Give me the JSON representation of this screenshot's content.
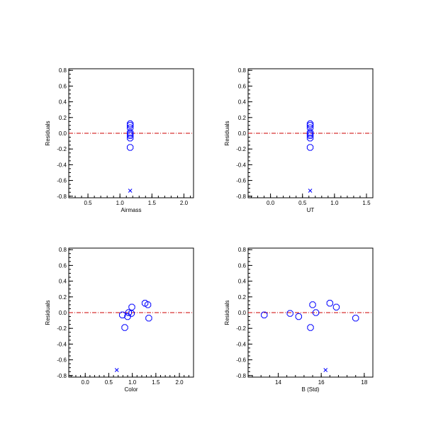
{
  "colors": {
    "point": "#0000ff",
    "excluded": "#0000ff",
    "zero_line": "#cc0000",
    "axes": "#000000"
  },
  "chart_data": [
    {
      "type": "scatter",
      "xlabel": "Airmass",
      "ylabel": "Residuals",
      "xlim": [
        0.2,
        2.15
      ],
      "ylim": [
        -0.82,
        0.82
      ],
      "xticks": [
        "0.5",
        "1.0",
        "1.5",
        "2.0"
      ],
      "xtick_values": [
        0.5,
        1.0,
        1.5,
        2.0
      ],
      "yticks": [
        "0.8",
        "0.6",
        "0.4",
        "0.2",
        "0.0",
        "-0.2",
        "-0.4",
        "-0.6",
        "-0.8"
      ],
      "ytick_values": [
        0.8,
        0.6,
        0.4,
        0.2,
        0.0,
        -0.2,
        -0.4,
        -0.6,
        -0.8
      ],
      "zero_line": 0.0,
      "points": [
        {
          "x": 1.16,
          "y": 0.12
        },
        {
          "x": 1.16,
          "y": 0.1
        },
        {
          "x": 1.16,
          "y": 0.07
        },
        {
          "x": 1.16,
          "y": 0.01
        },
        {
          "x": 1.16,
          "y": -0.01
        },
        {
          "x": 1.16,
          "y": -0.03
        },
        {
          "x": 1.16,
          "y": -0.06
        },
        {
          "x": 1.16,
          "y": -0.18
        }
      ],
      "excluded_points": [
        {
          "x": 1.16,
          "y": -0.73
        }
      ]
    },
    {
      "type": "scatter",
      "xlabel": "UT",
      "ylabel": "Residuals",
      "xlim": [
        -0.35,
        1.6
      ],
      "ylim": [
        -0.82,
        0.82
      ],
      "xticks": [
        "0.0",
        "0.5",
        "1.0",
        "1.5"
      ],
      "xtick_values": [
        0.0,
        0.5,
        1.0,
        1.5
      ],
      "yticks": [
        "0.8",
        "0.6",
        "0.4",
        "0.2",
        "0.0",
        "-0.2",
        "-0.4",
        "-0.6",
        "-0.8"
      ],
      "ytick_values": [
        0.8,
        0.6,
        0.4,
        0.2,
        0.0,
        -0.2,
        -0.4,
        -0.6,
        -0.8
      ],
      "zero_line": 0.0,
      "points": [
        {
          "x": 0.62,
          "y": 0.12
        },
        {
          "x": 0.62,
          "y": 0.1
        },
        {
          "x": 0.62,
          "y": 0.07
        },
        {
          "x": 0.62,
          "y": 0.01
        },
        {
          "x": 0.62,
          "y": -0.01
        },
        {
          "x": 0.62,
          "y": -0.03
        },
        {
          "x": 0.62,
          "y": -0.06
        },
        {
          "x": 0.62,
          "y": -0.18
        }
      ],
      "excluded_points": [
        {
          "x": 0.62,
          "y": -0.73
        }
      ]
    },
    {
      "type": "scatter",
      "xlabel": "Color",
      "ylabel": "Residuals",
      "xlim": [
        -0.35,
        2.3
      ],
      "ylim": [
        -0.82,
        0.82
      ],
      "xticks": [
        "0.0",
        "0.5",
        "1.0",
        "1.5",
        "2.0"
      ],
      "xtick_values": [
        0.0,
        0.5,
        1.0,
        1.5,
        2.0
      ],
      "yticks": [
        "0.8",
        "0.6",
        "0.4",
        "0.2",
        "0.0",
        "-0.2",
        "-0.4",
        "-0.6",
        "-0.8"
      ],
      "ytick_values": [
        0.8,
        0.6,
        0.4,
        0.2,
        0.0,
        -0.2,
        -0.4,
        -0.6,
        -0.8
      ],
      "zero_line": 0.0,
      "points": [
        {
          "x": 0.79,
          "y": -0.03
        },
        {
          "x": 0.84,
          "y": -0.19
        },
        {
          "x": 0.9,
          "y": -0.05
        },
        {
          "x": 0.92,
          "y": 0.0
        },
        {
          "x": 0.98,
          "y": -0.01
        },
        {
          "x": 0.99,
          "y": 0.07
        },
        {
          "x": 1.27,
          "y": 0.12
        },
        {
          "x": 1.33,
          "y": 0.1
        },
        {
          "x": 1.35,
          "y": -0.07
        }
      ],
      "excluded_points": [
        {
          "x": 0.67,
          "y": -0.73
        }
      ]
    },
    {
      "type": "scatter",
      "xlabel": "B (Std)",
      "ylabel": "Residuals",
      "xlim": [
        12.6,
        18.4
      ],
      "ylim": [
        -0.82,
        0.82
      ],
      "xticks": [
        "14",
        "16",
        "18"
      ],
      "xtick_values": [
        14,
        16,
        18
      ],
      "yticks": [
        "0.8",
        "0.6",
        "0.4",
        "0.2",
        "0.0",
        "-0.2",
        "-0.4",
        "-0.6",
        "-0.8"
      ],
      "ytick_values": [
        0.8,
        0.6,
        0.4,
        0.2,
        0.0,
        -0.2,
        -0.4,
        -0.6,
        -0.8
      ],
      "zero_line": 0.0,
      "points": [
        {
          "x": 13.35,
          "y": -0.03
        },
        {
          "x": 14.55,
          "y": -0.01
        },
        {
          "x": 14.95,
          "y": -0.05
        },
        {
          "x": 15.5,
          "y": -0.19
        },
        {
          "x": 15.6,
          "y": 0.1
        },
        {
          "x": 15.75,
          "y": 0.0
        },
        {
          "x": 16.4,
          "y": 0.12
        },
        {
          "x": 16.7,
          "y": 0.07
        },
        {
          "x": 17.6,
          "y": -0.07
        }
      ],
      "excluded_points": [
        {
          "x": 16.2,
          "y": -0.73
        }
      ]
    }
  ]
}
